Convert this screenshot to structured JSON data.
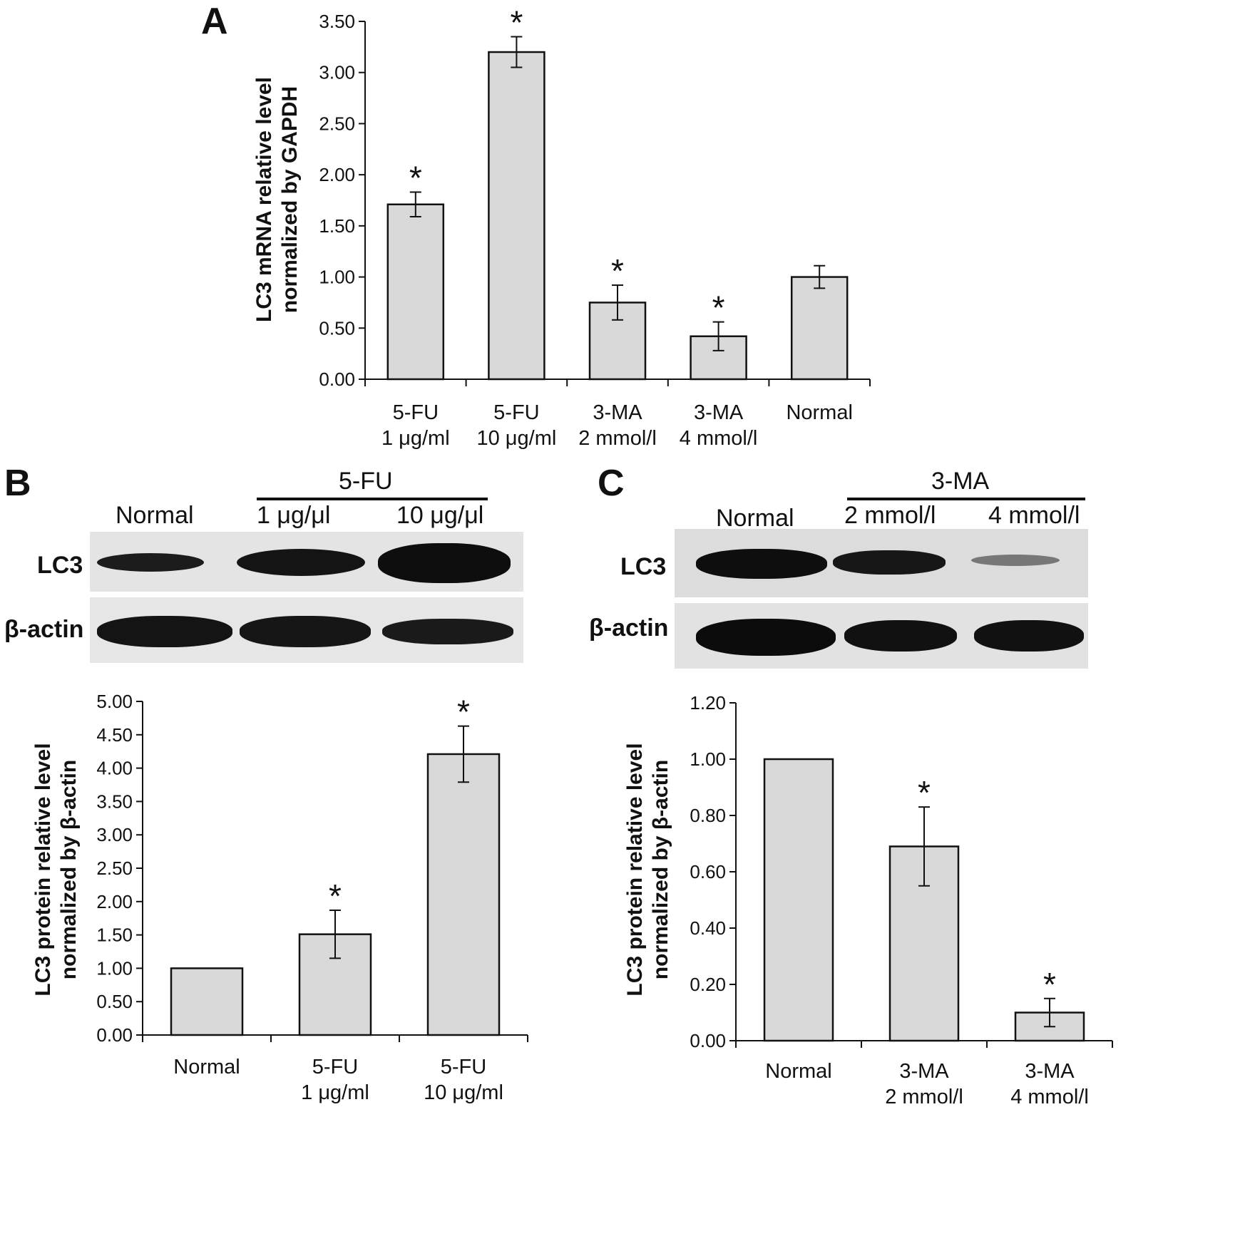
{
  "panels": {
    "a": "A",
    "b": "B",
    "c": "C"
  },
  "chart_data": [
    {
      "panel": "A",
      "type": "bar",
      "categories": [
        [
          "5-FU",
          "1 μg/ml"
        ],
        [
          "5-FU",
          "10 μg/ml"
        ],
        [
          "3-MA",
          "2 mmol/l"
        ],
        [
          "3-MA",
          "4 mmol/l"
        ],
        [
          "Normal"
        ]
      ],
      "values": [
        1.71,
        3.2,
        0.75,
        0.42,
        1.0
      ],
      "errors": [
        0.12,
        0.15,
        0.17,
        0.14,
        0.11
      ],
      "significant": [
        true,
        true,
        true,
        true,
        false
      ],
      "marker": "*",
      "ylabel": [
        "LC3 mRNA relative level",
        "normalized by GAPDH"
      ],
      "ylim": [
        0,
        3.5
      ],
      "yticks": [
        "0.00",
        "0.50",
        "1.00",
        "1.50",
        "2.00",
        "2.50",
        "3.00",
        "3.50"
      ],
      "grid": false
    },
    {
      "panel": "B",
      "type": "bar",
      "categories": [
        [
          "Normal"
        ],
        [
          "5-FU",
          "1 μg/ml"
        ],
        [
          "5-FU",
          "10 μg/ml"
        ]
      ],
      "values": [
        1.0,
        1.51,
        4.21
      ],
      "errors": [
        0,
        0.36,
        0.42
      ],
      "significant": [
        false,
        true,
        true
      ],
      "marker": "*",
      "ylabel": [
        "LC3 protein relative level",
        "normalized by β-actin"
      ],
      "ylim": [
        0,
        5.0
      ],
      "yticks": [
        "0.00",
        "0.50",
        "1.00",
        "1.50",
        "2.00",
        "2.50",
        "3.00",
        "3.50",
        "4.00",
        "4.50",
        "5.00"
      ],
      "grid": false
    },
    {
      "panel": "C",
      "type": "bar",
      "categories": [
        [
          "Normal"
        ],
        [
          "3-MA",
          "2 mmol/l"
        ],
        [
          "3-MA",
          "4 mmol/l"
        ]
      ],
      "values": [
        1.0,
        0.69,
        0.1
      ],
      "errors": [
        0,
        0.14,
        0.05
      ],
      "significant": [
        false,
        true,
        true
      ],
      "marker": "*",
      "ylabel": [
        "LC3 protein relative level",
        "normalized by β-actin"
      ],
      "ylim": [
        0,
        1.2
      ],
      "yticks": [
        "0.00",
        "0.20",
        "0.40",
        "0.60",
        "0.80",
        "1.00",
        "1.20"
      ],
      "grid": false
    }
  ],
  "blots": [
    {
      "panel": "B",
      "group_label": "5-FU",
      "lanes": [
        "Normal",
        "1 μg/μl",
        "10 μg/μl"
      ],
      "rows": [
        {
          "label": "LC3",
          "band_intensity": [
            0.55,
            0.8,
            1.0
          ]
        },
        {
          "label": "β-actin",
          "band_intensity": [
            0.95,
            0.95,
            0.9
          ]
        }
      ]
    },
    {
      "panel": "C",
      "group_label": "3-MA",
      "lanes": [
        "Normal",
        "2 mmol/l",
        "4 mmol/l"
      ],
      "rows": [
        {
          "label": "LC3",
          "band_intensity": [
            1.0,
            0.8,
            0.3
          ]
        },
        {
          "label": "β-actin",
          "band_intensity": [
            1.0,
            0.95,
            0.95
          ]
        }
      ]
    }
  ]
}
